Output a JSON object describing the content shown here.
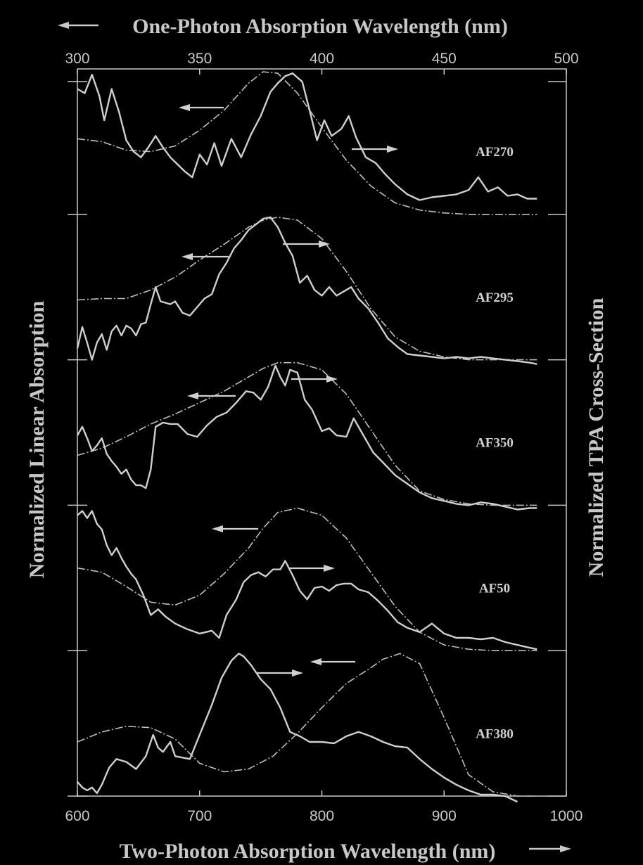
{
  "chart_data": {
    "type": "line",
    "top_axis": {
      "label": "One-Photon Absorption Wavelength (nm)",
      "range": [
        300,
        500
      ],
      "ticks": [
        300,
        350,
        400,
        450,
        500
      ]
    },
    "bottom_axis": {
      "label": "Two-Photon Absorption Wavelength (nm)",
      "range": [
        600,
        1000
      ],
      "ticks": [
        600,
        700,
        800,
        900,
        1000
      ]
    },
    "left_axis_label": "Normalized Linear Absorption",
    "right_axis_label": "Normalized TPA Cross-Section",
    "grid": false,
    "colors": {
      "background": "#000000",
      "tpa": "#cfcfcf",
      "linear": "#bdbdbd",
      "axis": "#c8c8c8"
    },
    "panels": [
      {
        "label": "AF270",
        "linear_absorption": {
          "x": [
            300,
            310,
            320,
            330,
            340,
            350,
            360,
            370,
            376,
            382,
            390,
            400,
            410,
            420,
            430,
            440,
            450,
            460,
            470,
            480,
            488
          ],
          "y": [
            0.53,
            0.51,
            0.45,
            0.44,
            0.48,
            0.59,
            0.73,
            0.92,
            1.0,
            0.99,
            0.85,
            0.61,
            0.38,
            0.2,
            0.08,
            0.03,
            0.01,
            0.0,
            0.0,
            0.0,
            0.0
          ]
        },
        "tpa_cross_section": {
          "x": [
            600,
            606,
            612,
            618,
            622,
            628,
            634,
            640,
            646,
            652,
            658,
            664,
            670,
            676,
            682,
            688,
            694,
            700,
            706,
            712,
            718,
            726,
            734,
            742,
            750,
            758,
            764,
            770,
            776,
            784,
            790,
            796,
            802,
            808,
            816,
            822,
            828,
            836,
            844,
            852,
            860,
            870,
            880,
            890,
            900,
            910,
            920,
            928,
            936,
            944,
            952,
            960,
            968,
            976
          ],
          "y": [
            0.88,
            0.85,
            0.98,
            0.83,
            0.66,
            0.88,
            0.72,
            0.52,
            0.44,
            0.4,
            0.47,
            0.55,
            0.47,
            0.4,
            0.35,
            0.3,
            0.26,
            0.42,
            0.35,
            0.5,
            0.34,
            0.53,
            0.4,
            0.56,
            0.69,
            0.86,
            0.92,
            0.97,
            0.99,
            0.93,
            0.73,
            0.52,
            0.66,
            0.55,
            0.6,
            0.69,
            0.54,
            0.4,
            0.36,
            0.28,
            0.21,
            0.14,
            0.1,
            0.12,
            0.13,
            0.14,
            0.17,
            0.26,
            0.16,
            0.19,
            0.13,
            0.14,
            0.11,
            0.11
          ]
        }
      },
      {
        "label": "AF295",
        "linear_absorption": {
          "x": [
            300,
            310,
            320,
            330,
            340,
            350,
            360,
            370,
            376,
            382,
            390,
            400,
            410,
            420,
            430,
            440,
            450,
            460,
            470,
            480,
            488
          ],
          "y": [
            0.42,
            0.43,
            0.43,
            0.49,
            0.58,
            0.7,
            0.81,
            0.93,
            0.98,
            1.0,
            0.98,
            0.85,
            0.62,
            0.36,
            0.16,
            0.06,
            0.02,
            0.0,
            0.0,
            0.0,
            0.0
          ]
        },
        "tpa_cross_section": {
          "x": [
            600,
            604,
            608,
            612,
            616,
            620,
            624,
            628,
            632,
            636,
            640,
            644,
            648,
            652,
            656,
            660,
            664,
            668,
            672,
            676,
            680,
            686,
            692,
            698,
            704,
            710,
            716,
            722,
            728,
            734,
            740,
            746,
            752,
            758,
            764,
            770,
            776,
            782,
            788,
            794,
            800,
            806,
            812,
            818,
            824,
            830,
            838,
            846,
            854,
            862,
            870,
            880,
            890,
            900,
            910,
            920,
            930,
            940,
            950,
            960,
            970,
            976
          ],
          "y": [
            0.08,
            0.23,
            0.12,
            0.0,
            0.12,
            0.18,
            0.07,
            0.2,
            0.24,
            0.17,
            0.24,
            0.22,
            0.17,
            0.25,
            0.26,
            0.39,
            0.51,
            0.41,
            0.4,
            0.39,
            0.41,
            0.33,
            0.31,
            0.37,
            0.43,
            0.46,
            0.6,
            0.68,
            0.78,
            0.84,
            0.91,
            0.95,
            0.99,
            1.0,
            0.93,
            0.82,
            0.73,
            0.54,
            0.59,
            0.49,
            0.45,
            0.51,
            0.45,
            0.48,
            0.51,
            0.43,
            0.36,
            0.26,
            0.15,
            0.09,
            0.04,
            0.03,
            0.02,
            0.01,
            0.02,
            0.01,
            0.02,
            0.01,
            0.0,
            -0.01,
            -0.02,
            -0.03
          ]
        }
      },
      {
        "label": "AF350",
        "linear_absorption": {
          "x": [
            300,
            310,
            320,
            330,
            340,
            350,
            360,
            370,
            376,
            382,
            390,
            400,
            410,
            420,
            430,
            440,
            450,
            460,
            470,
            480,
            488
          ],
          "y": [
            0.35,
            0.4,
            0.48,
            0.57,
            0.64,
            0.72,
            0.8,
            0.9,
            0.96,
            1.0,
            1.0,
            0.95,
            0.78,
            0.53,
            0.28,
            0.1,
            0.04,
            0.01,
            0.0,
            0.0,
            0.0
          ]
        },
        "tpa_cross_section": {
          "x": [
            600,
            604,
            608,
            612,
            616,
            620,
            624,
            628,
            632,
            636,
            640,
            644,
            648,
            652,
            656,
            660,
            664,
            670,
            676,
            682,
            690,
            698,
            706,
            714,
            722,
            730,
            738,
            744,
            750,
            756,
            762,
            766,
            770,
            774,
            780,
            786,
            792,
            800,
            806,
            812,
            820,
            826,
            834,
            842,
            850,
            860,
            870,
            880,
            890,
            900,
            910,
            920,
            930,
            940,
            950,
            960,
            970,
            976
          ],
          "y": [
            0.49,
            0.55,
            0.47,
            0.38,
            0.42,
            0.47,
            0.36,
            0.31,
            0.27,
            0.22,
            0.25,
            0.18,
            0.14,
            0.14,
            0.12,
            0.25,
            0.55,
            0.58,
            0.57,
            0.57,
            0.5,
            0.48,
            0.56,
            0.62,
            0.65,
            0.72,
            0.8,
            0.79,
            0.74,
            0.83,
            0.98,
            0.9,
            0.84,
            0.95,
            0.93,
            0.74,
            0.67,
            0.52,
            0.54,
            0.49,
            0.48,
            0.61,
            0.49,
            0.37,
            0.3,
            0.21,
            0.15,
            0.09,
            0.05,
            0.03,
            0.01,
            0.0,
            0.02,
            0.01,
            -0.01,
            -0.03,
            -0.02,
            -0.02
          ]
        }
      },
      {
        "label": "AF50",
        "linear_absorption": {
          "x": [
            300,
            310,
            320,
            330,
            340,
            350,
            360,
            370,
            376,
            382,
            390,
            400,
            410,
            420,
            430,
            440,
            450,
            460,
            470,
            480,
            488
          ],
          "y": [
            0.58,
            0.55,
            0.45,
            0.34,
            0.32,
            0.39,
            0.54,
            0.72,
            0.86,
            0.97,
            1.0,
            0.95,
            0.79,
            0.55,
            0.31,
            0.13,
            0.04,
            0.01,
            0.0,
            0.0,
            0.0
          ]
        },
        "tpa_cross_section": {
          "x": [
            600,
            604,
            608,
            612,
            616,
            620,
            624,
            628,
            632,
            636,
            640,
            644,
            648,
            654,
            660,
            666,
            672,
            680,
            690,
            700,
            710,
            716,
            722,
            730,
            736,
            742,
            748,
            754,
            760,
            766,
            770,
            776,
            782,
            788,
            794,
            800,
            806,
            812,
            818,
            824,
            830,
            838,
            846,
            854,
            862,
            870,
            880,
            890,
            900,
            910,
            920,
            930,
            940,
            950,
            960,
            970,
            976
          ],
          "y": [
            0.95,
            0.98,
            0.93,
            0.98,
            0.89,
            0.85,
            0.74,
            0.67,
            0.72,
            0.65,
            0.59,
            0.54,
            0.5,
            0.39,
            0.25,
            0.29,
            0.24,
            0.19,
            0.15,
            0.12,
            0.14,
            0.09,
            0.25,
            0.36,
            0.48,
            0.53,
            0.55,
            0.52,
            0.57,
            0.57,
            0.63,
            0.53,
            0.42,
            0.36,
            0.44,
            0.45,
            0.42,
            0.46,
            0.47,
            0.47,
            0.43,
            0.41,
            0.35,
            0.28,
            0.2,
            0.16,
            0.13,
            0.19,
            0.12,
            0.09,
            0.09,
            0.08,
            0.09,
            0.06,
            0.04,
            0.02,
            0.01
          ]
        }
      },
      {
        "label": "AF380",
        "linear_absorption": {
          "x": [
            300,
            310,
            320,
            330,
            340,
            350,
            360,
            370,
            380,
            390,
            400,
            410,
            420,
            425,
            432,
            440,
            450,
            460,
            470,
            480,
            488
          ],
          "y": [
            0.38,
            0.45,
            0.49,
            0.48,
            0.4,
            0.23,
            0.17,
            0.19,
            0.28,
            0.44,
            0.62,
            0.79,
            0.9,
            0.96,
            1.0,
            0.93,
            0.55,
            0.15,
            0.03,
            0.0,
            0.0
          ]
        },
        "tpa_cross_section": {
          "x": [
            600,
            604,
            608,
            612,
            616,
            620,
            626,
            632,
            640,
            648,
            656,
            662,
            666,
            670,
            676,
            680,
            686,
            692,
            700,
            710,
            718,
            726,
            732,
            736,
            742,
            750,
            758,
            766,
            774,
            782,
            790,
            800,
            810,
            820,
            830,
            840,
            850,
            860,
            870,
            880,
            890,
            900,
            910,
            920,
            930,
            940,
            950,
            960
          ],
          "y": [
            0.1,
            0.06,
            0.04,
            0.06,
            0.02,
            0.08,
            0.2,
            0.26,
            0.24,
            0.19,
            0.28,
            0.43,
            0.34,
            0.31,
            0.38,
            0.28,
            0.27,
            0.26,
            0.43,
            0.64,
            0.83,
            0.95,
            1.0,
            0.98,
            0.92,
            0.82,
            0.75,
            0.62,
            0.45,
            0.42,
            0.38,
            0.38,
            0.37,
            0.42,
            0.45,
            0.42,
            0.38,
            0.35,
            0.34,
            0.26,
            0.19,
            0.13,
            0.08,
            0.04,
            0.01,
            0.01,
            0.0,
            -0.04
          ]
        }
      }
    ]
  }
}
